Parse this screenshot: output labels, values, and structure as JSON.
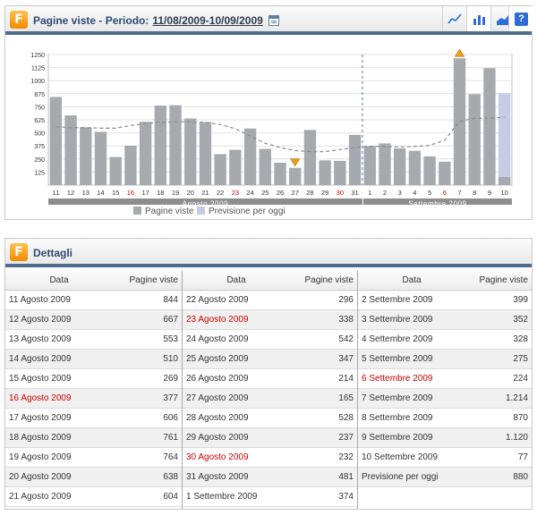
{
  "chart_panel": {
    "title": "Pagine viste - Periodo:",
    "period": "11/08/2009-10/09/2009",
    "legend": [
      {
        "label": "Pagine viste",
        "color": "#a6a9ae"
      },
      {
        "label": "Previsione per oggi",
        "color": "#c6cbe6"
      }
    ]
  },
  "chart_data": {
    "type": "bar",
    "title": "",
    "ylabel": "",
    "xlabel": "",
    "ylim": [
      0,
      1250
    ],
    "yticks": [
      125,
      250,
      375,
      500,
      625,
      750,
      875,
      1000,
      1125,
      1250
    ],
    "grid": true,
    "categories": [
      "11",
      "12",
      "13",
      "14",
      "15",
      "16",
      "17",
      "18",
      "19",
      "20",
      "21",
      "22",
      "23",
      "24",
      "25",
      "26",
      "27",
      "28",
      "29",
      "30",
      "31",
      "1",
      "2",
      "3",
      "4",
      "5",
      "6",
      "7",
      "8",
      "9",
      "10"
    ],
    "weekend_categories": [
      "16",
      "23",
      "30",
      "6"
    ],
    "months": [
      {
        "label": "Agosto 2009",
        "count": 21
      },
      {
        "label": "Settembre 2009",
        "count": 10
      }
    ],
    "series": [
      {
        "name": "Pagine viste",
        "color": "#a6a9ae",
        "values": [
          844,
          667,
          553,
          510,
          269,
          377,
          606,
          761,
          764,
          638,
          604,
          296,
          338,
          542,
          347,
          214,
          165,
          528,
          237,
          232,
          481,
          374,
          399,
          352,
          328,
          275,
          224,
          1214,
          870,
          1120,
          77
        ]
      },
      {
        "name": "Previsione per oggi",
        "color": "#c6cbe6",
        "values": [
          null,
          null,
          null,
          null,
          null,
          null,
          null,
          null,
          null,
          null,
          null,
          null,
          null,
          null,
          null,
          null,
          null,
          null,
          null,
          null,
          null,
          null,
          null,
          null,
          null,
          null,
          null,
          null,
          null,
          null,
          880
        ]
      }
    ],
    "trend": [
      560,
      550,
      550,
      545,
      545,
      570,
      590,
      600,
      605,
      605,
      600,
      580,
      540,
      470,
      400,
      360,
      330,
      320,
      320,
      340,
      360,
      370,
      370,
      365,
      370,
      380,
      430,
      610,
      640,
      640,
      650
    ],
    "markers": [
      {
        "category": "27",
        "type": "min"
      },
      {
        "category": "7",
        "type": "max"
      }
    ],
    "divider_after": "31"
  },
  "details": {
    "title": "Dettagli",
    "col_date": "Data",
    "col_views": "Pagine viste",
    "columns": [
      [
        {
          "d": "11 Agosto 2009",
          "v": "844"
        },
        {
          "d": "12 Agosto 2009",
          "v": "667"
        },
        {
          "d": "13 Agosto 2009",
          "v": "553"
        },
        {
          "d": "14 Agosto 2009",
          "v": "510"
        },
        {
          "d": "15 Agosto 2009",
          "v": "269"
        },
        {
          "d": "16 Agosto 2009",
          "v": "377",
          "red": true
        },
        {
          "d": "17 Agosto 2009",
          "v": "606"
        },
        {
          "d": "18 Agosto 2009",
          "v": "761"
        },
        {
          "d": "19 Agosto 2009",
          "v": "764"
        },
        {
          "d": "20 Agosto 2009",
          "v": "638"
        },
        {
          "d": "21 Agosto 2009",
          "v": "604"
        }
      ],
      [
        {
          "d": "22 Agosto 2009",
          "v": "296"
        },
        {
          "d": "23 Agosto 2009",
          "v": "338",
          "red": true
        },
        {
          "d": "24 Agosto 2009",
          "v": "542"
        },
        {
          "d": "25 Agosto 2009",
          "v": "347"
        },
        {
          "d": "26 Agosto 2009",
          "v": "214"
        },
        {
          "d": "27 Agosto 2009",
          "v": "165"
        },
        {
          "d": "28 Agosto 2009",
          "v": "528"
        },
        {
          "d": "29 Agosto 2009",
          "v": "237"
        },
        {
          "d": "30 Agosto 2009",
          "v": "232",
          "red": true
        },
        {
          "d": "31 Agosto 2009",
          "v": "481"
        },
        {
          "d": "1 Settembre 2009",
          "v": "374"
        }
      ],
      [
        {
          "d": "2 Settembre 2009",
          "v": "399"
        },
        {
          "d": "3 Settembre 2009",
          "v": "352"
        },
        {
          "d": "4 Settembre 2009",
          "v": "328"
        },
        {
          "d": "5 Settembre 2009",
          "v": "275"
        },
        {
          "d": "6 Settembre 2009",
          "v": "224",
          "red": true
        },
        {
          "d": "7 Settembre 2009",
          "v": "1.214"
        },
        {
          "d": "8 Settembre 2009",
          "v": "870"
        },
        {
          "d": "9 Settembre 2009",
          "v": "1.120"
        },
        {
          "d": "10 Settembre 2009",
          "v": "77"
        },
        {
          "d": "Previsione per oggi",
          "v": "880"
        }
      ]
    ]
  }
}
